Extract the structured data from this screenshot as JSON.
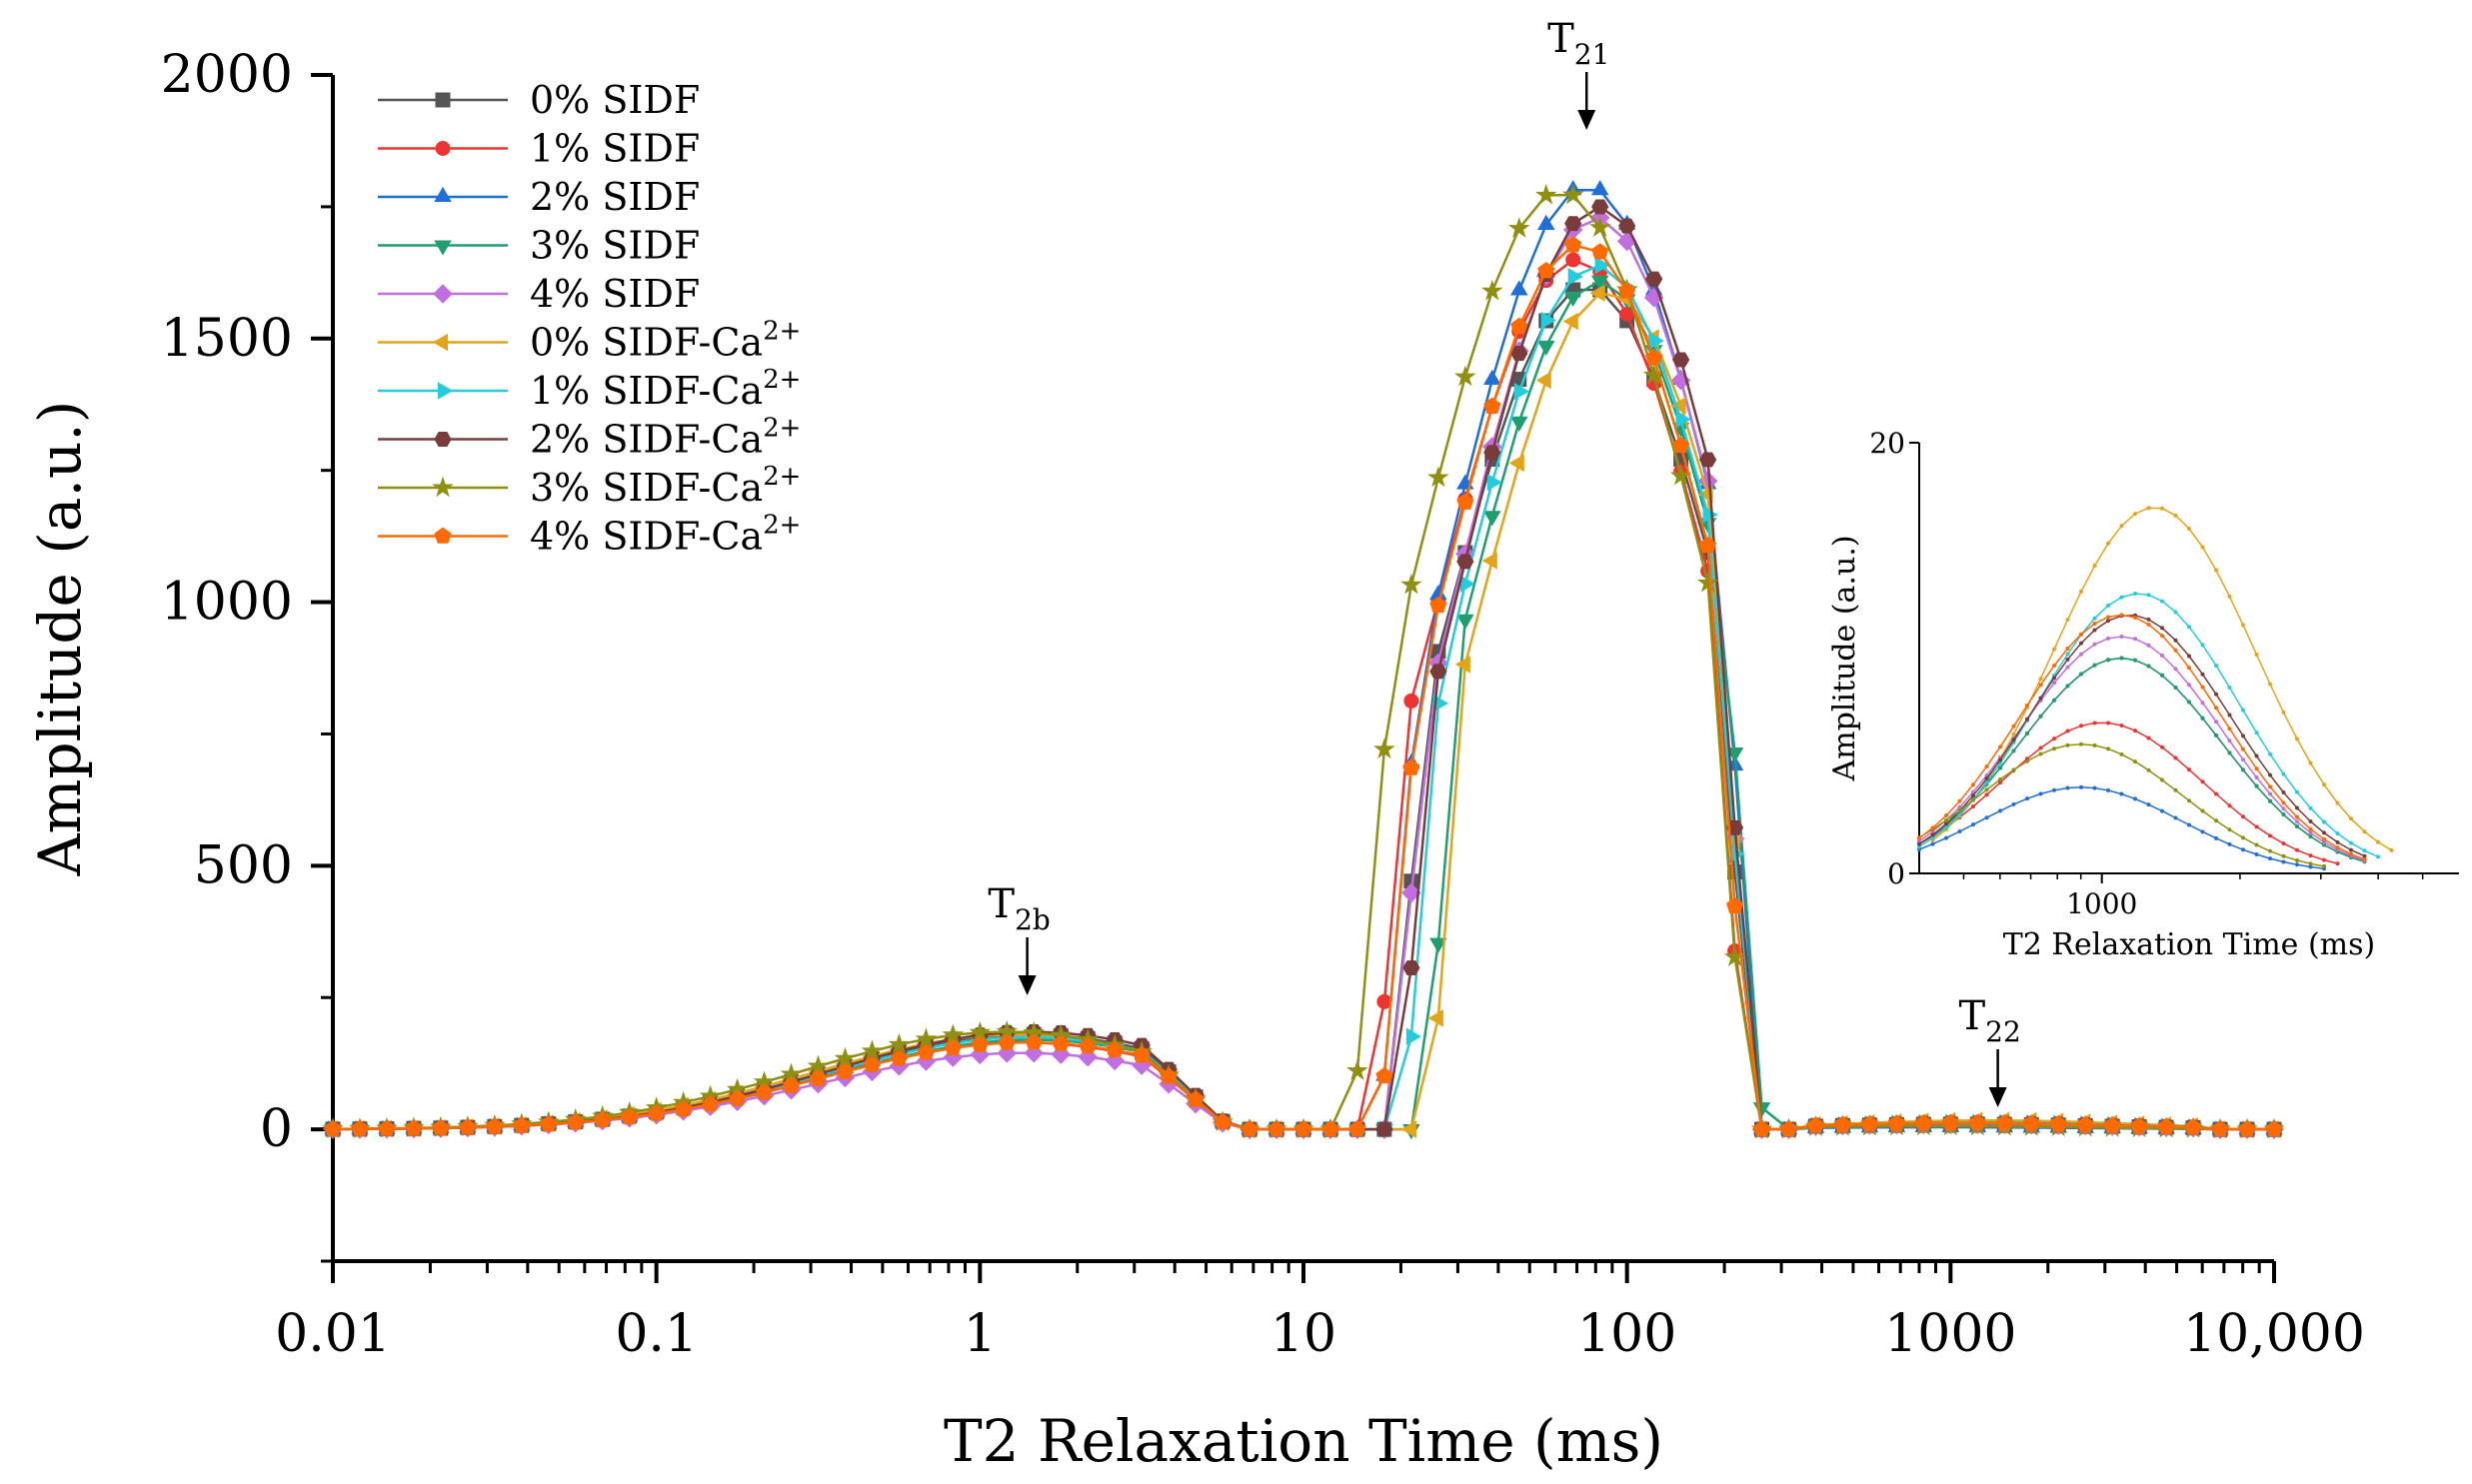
{
  "chart_data": {
    "type": "line",
    "xscale": "log",
    "xlabel": "T2 Relaxation Time (ms)",
    "ylabel": "Amplitude (a.u.)",
    "xlim": [
      0.01,
      10000
    ],
    "ylim": [
      -250,
      2000
    ],
    "xticks": [
      0.01,
      0.1,
      1,
      10,
      100,
      1000,
      10000
    ],
    "xtick_labels": [
      "0.01",
      "0.1",
      "1",
      "10",
      "100",
      "1000",
      "10,000"
    ],
    "yticks": [
      0,
      500,
      1000,
      1500,
      2000
    ],
    "ytick_labels": [
      "0",
      "500",
      "1000",
      "1500",
      "2000"
    ],
    "legend_position": "top-left",
    "annotations": [
      {
        "main": "T",
        "sub": "2b",
        "x": 1.4,
        "y": 180
      },
      {
        "main": "T",
        "sub": "21",
        "x": 75,
        "y": 1800
      },
      {
        "main": "T",
        "sub": "22",
        "x": 1400,
        "y": 25
      }
    ],
    "series": [
      {
        "name": "0% SIDF",
        "sup": "",
        "color": "#555555",
        "marker": "square",
        "p1": {
          "amp": 180,
          "mu": 1.4,
          "sig": 0.62
        },
        "p2": {
          "amp": 1600,
          "mu": 75,
          "sig": 0.43,
          "lo": 18,
          "hi": 250
        },
        "p3": {
          "amp": 10,
          "mu": 1100,
          "sig": 0.45
        }
      },
      {
        "name": "1% SIDF",
        "sup": "",
        "color": "#ee3333",
        "marker": "circle",
        "p1": {
          "amp": 165,
          "mu": 1.35,
          "sig": 0.62
        },
        "p2": {
          "amp": 1650,
          "mu": 70,
          "sig": 0.43,
          "lo": 16,
          "hi": 240
        },
        "p3": {
          "amp": 7,
          "mu": 1000,
          "sig": 0.45
        }
      },
      {
        "name": "2% SIDF",
        "sup": "",
        "color": "#1f6fd6",
        "marker": "triangle-up",
        "p1": {
          "amp": 175,
          "mu": 1.4,
          "sig": 0.62
        },
        "p2": {
          "amp": 1790,
          "mu": 75,
          "sig": 0.43,
          "lo": 17,
          "hi": 260
        },
        "p3": {
          "amp": 4,
          "mu": 900,
          "sig": 0.45
        }
      },
      {
        "name": "3% SIDF",
        "sup": "",
        "color": "#1f9e6f",
        "marker": "triangle-down",
        "p1": {
          "amp": 170,
          "mu": 1.45,
          "sig": 0.62
        },
        "p2": {
          "amp": 1610,
          "mu": 82,
          "sig": 0.41,
          "lo": 23,
          "hi": 265
        },
        "p3": {
          "amp": 10,
          "mu": 1100,
          "sig": 0.45
        }
      },
      {
        "name": "4% SIDF",
        "sup": "",
        "color": "#c06ee0",
        "marker": "diamond",
        "p1": {
          "amp": 145,
          "mu": 1.35,
          "sig": 0.62
        },
        "p2": {
          "amp": 1730,
          "mu": 80,
          "sig": 0.42,
          "lo": 18,
          "hi": 250
        },
        "p3": {
          "amp": 11,
          "mu": 1100,
          "sig": 0.45
        }
      },
      {
        "name": "0% SIDF-Ca",
        "sup": "2+",
        "color": "#e3a517",
        "marker": "triangle-left",
        "p1": {
          "amp": 180,
          "mu": 1.3,
          "sig": 0.62
        },
        "p2": {
          "amp": 1590,
          "mu": 88,
          "sig": 0.41,
          "lo": 24,
          "hi": 250
        },
        "p3": {
          "amp": 17,
          "mu": 1300,
          "sig": 0.45
        }
      },
      {
        "name": "1% SIDF-Ca",
        "sup": "2+",
        "color": "#22ccdd",
        "marker": "triangle-right",
        "p1": {
          "amp": 175,
          "mu": 1.4,
          "sig": 0.62
        },
        "p2": {
          "amp": 1640,
          "mu": 80,
          "sig": 0.42,
          "lo": 20,
          "hi": 250
        },
        "p3": {
          "amp": 13,
          "mu": 1200,
          "sig": 0.45
        }
      },
      {
        "name": "2% SIDF-Ca",
        "sup": "2+",
        "color": "#7a3b3b",
        "marker": "hexagon",
        "p1": {
          "amp": 185,
          "mu": 1.45,
          "sig": 0.62
        },
        "p2": {
          "amp": 1750,
          "mu": 82,
          "sig": 0.42,
          "lo": 19,
          "hi": 250
        },
        "p3": {
          "amp": 12,
          "mu": 1150,
          "sig": 0.45
        }
      },
      {
        "name": "3% SIDF-Ca",
        "sup": "2+",
        "color": "#8f8f10",
        "marker": "star",
        "p1": {
          "amp": 185,
          "mu": 1.2,
          "sig": 0.62
        },
        "p2": {
          "amp": 1780,
          "mu": 62,
          "sig": 0.44,
          "lo": 14,
          "hi": 240
        },
        "p3": {
          "amp": 6,
          "mu": 900,
          "sig": 0.45
        }
      },
      {
        "name": "4% SIDF-Ca",
        "sup": "2+",
        "color": "#ff6a00",
        "marker": "pentagon",
        "p1": {
          "amp": 165,
          "mu": 1.4,
          "sig": 0.62
        },
        "p2": {
          "amp": 1680,
          "mu": 72,
          "sig": 0.43,
          "lo": 17,
          "hi": 245
        },
        "p3": {
          "amp": 12,
          "mu": 1100,
          "sig": 0.45
        }
      }
    ],
    "inset": {
      "xlabel": "T2 Relaxation Time (ms)",
      "ylabel": "Amplitude (a.u.)",
      "xlim": [
        400,
        6000
      ],
      "ylim": [
        0,
        20
      ],
      "xticks": [
        1000
      ],
      "xtick_labels": [
        "1000"
      ],
      "yticks": [
        0,
        20
      ],
      "ytick_labels": [
        "0",
        "20"
      ]
    }
  }
}
